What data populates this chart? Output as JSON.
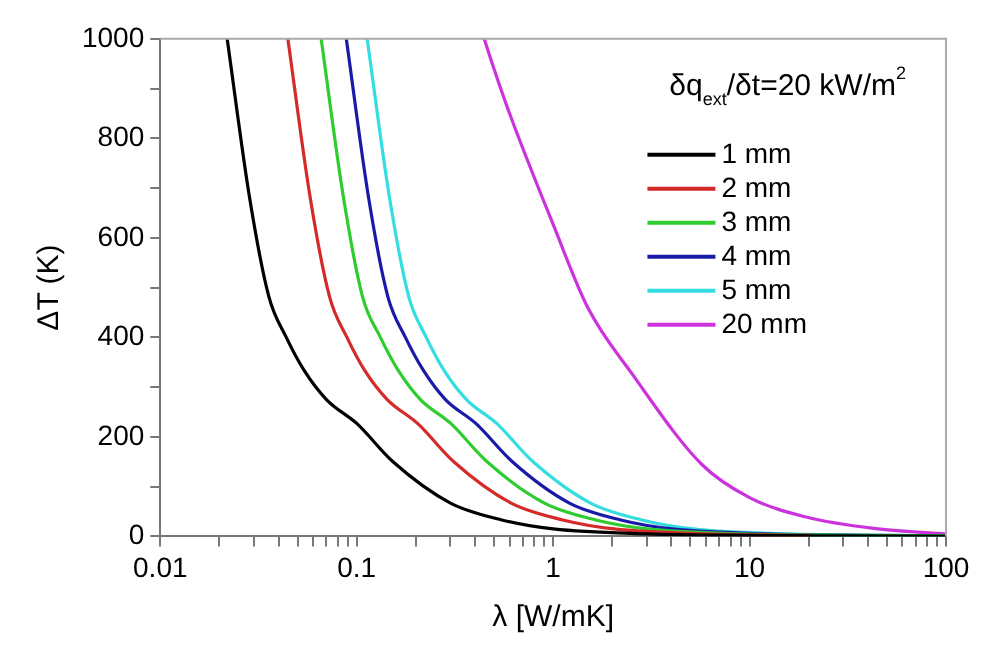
{
  "chart_data": {
    "type": "line",
    "xlabel": "λ [W/mK]",
    "ylabel": "ΔT (K)",
    "log": "x",
    "grid": false,
    "legend": "top right",
    "marker": "none",
    "line_style": "solid",
    "annotations": [
      "δq$_{ext}$/δt=20 kW/m$^{2}$"
    ],
    "xlim": [
      0.01,
      100
    ],
    "ylim": [
      0,
      1000
    ],
    "xticks": [
      0.01,
      {
        "value": 0.02,
        "label": null
      },
      {
        "value": 0.03,
        "label": null
      },
      {
        "value": 0.04,
        "label": null
      },
      {
        "value": 0.05,
        "label": null
      },
      {
        "value": 0.06,
        "label": null
      },
      {
        "value": 0.07,
        "label": null
      },
      {
        "value": 0.08,
        "label": null
      },
      {
        "value": 0.09,
        "label": null
      },
      0.1,
      {
        "value": 0.2,
        "label": null
      },
      {
        "value": 0.3,
        "label": null
      },
      {
        "value": 0.4,
        "label": null
      },
      {
        "value": 0.5,
        "label": null
      },
      {
        "value": 0.6,
        "label": null
      },
      {
        "value": 0.7,
        "label": null
      },
      {
        "value": 0.8,
        "label": null
      },
      {
        "value": 0.9,
        "label": null
      },
      1,
      {
        "value": 2,
        "label": null
      },
      {
        "value": 3,
        "label": null
      },
      {
        "value": 4,
        "label": null
      },
      {
        "value": 5,
        "label": null
      },
      {
        "value": 6,
        "label": null
      },
      {
        "value": 7,
        "label": null
      },
      {
        "value": 8,
        "label": null
      },
      {
        "value": 9,
        "label": null
      },
      10,
      {
        "value": 20,
        "label": null
      },
      {
        "value": 30,
        "label": null
      },
      {
        "value": 40,
        "label": null
      },
      {
        "value": 50,
        "label": null
      },
      {
        "value": 60,
        "label": null
      },
      {
        "value": 70,
        "label": null
      },
      {
        "value": 80,
        "label": null
      },
      {
        "value": 90,
        "label": null
      },
      100
    ],
    "yticks": [
      0,
      {
        "value": 100,
        "label": null
      },
      200,
      {
        "value": 300,
        "label": null
      },
      400,
      {
        "value": 500,
        "label": null
      },
      600,
      {
        "value": 700,
        "label": null
      },
      800,
      {
        "value": 900,
        "label": null
      },
      1000
    ],
    "series": [
      {
        "name": "1 mm",
        "color": "#000000",
        "x": [
          0.0219,
          0.0285,
          0.0357,
          0.0438,
          0.0541,
          0.0701,
          0.1,
          0.153,
          0.3,
          0.548,
          1,
          3,
          10,
          32.9,
          100
        ],
        "values": [
          1000,
          680,
          482,
          400,
          333,
          275,
          227,
          150,
          67,
          33,
          15,
          5,
          2,
          1,
          0
        ]
      },
      {
        "name": "2 mm",
        "color": "#d42a2a",
        "x": [
          0.0446,
          0.058,
          0.0727,
          0.0892,
          0.11,
          0.143,
          0.204,
          0.312,
          0.611,
          1.12,
          2.04,
          6.11,
          20.4
        ],
        "values": [
          1000,
          680,
          482,
          400,
          333,
          275,
          227,
          150,
          67,
          33,
          15,
          5,
          2
        ]
      },
      {
        "name": "3 mm",
        "color": "#2ecc2e",
        "x": [
          0.0659,
          0.0857,
          0.107,
          0.132,
          0.163,
          0.211,
          0.301,
          0.461,
          0.903,
          1.65,
          3.01,
          9.03,
          30.1,
          100
        ],
        "values": [
          1000,
          680,
          482,
          400,
          333,
          275,
          227,
          150,
          67,
          33,
          15,
          5,
          2,
          1
        ]
      },
      {
        "name": "4 mm",
        "color": "#1a1aa8",
        "x": [
          0.0885,
          0.115,
          0.144,
          0.177,
          0.219,
          0.283,
          0.404,
          0.62,
          1.21,
          2.21,
          4.04,
          12.1,
          40.4,
          100
        ],
        "values": [
          1000,
          680,
          482,
          400,
          333,
          275,
          227,
          150,
          67,
          33,
          15,
          5,
          2,
          1
        ]
      },
      {
        "name": "5 mm",
        "color": "#33dde0",
        "x": [
          0.113,
          0.147,
          0.184,
          0.226,
          0.279,
          0.362,
          0.516,
          0.791,
          1.55,
          2.83,
          5.16,
          15.5,
          51.6,
          100
        ],
        "values": [
          1000,
          680,
          482,
          400,
          333,
          275,
          227,
          150,
          67,
          33,
          15,
          5,
          2,
          1
        ]
      },
      {
        "name": "20 mm",
        "color": "#cc33dd",
        "x": [
          0.446,
          0.49,
          0.6,
          1,
          1.5,
          2.54,
          5.7,
          10,
          19.4,
          43,
          100
        ],
        "values": [
          1000,
          950,
          850,
          627,
          460,
          325,
          145,
          78,
          39,
          16,
          5
        ]
      }
    ]
  }
}
